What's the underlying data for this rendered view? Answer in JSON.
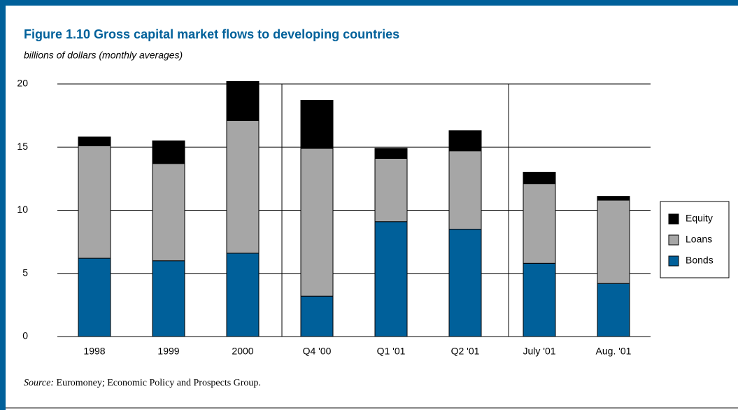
{
  "chart_data": {
    "type": "stacked_bar",
    "title": "Figure 1.10  Gross capital market flows to developing countries",
    "subtitle": "billions of dollars (monthly averages)",
    "categories": [
      "1998",
      "1999",
      "2000",
      "Q4 '00",
      "Q1 '01",
      "Q2 '01",
      "July '01",
      "Aug. '01"
    ],
    "series": [
      {
        "name": "Bonds",
        "color": "#00609a",
        "values": [
          6.2,
          6.0,
          6.6,
          3.2,
          9.1,
          8.5,
          5.8,
          4.2
        ]
      },
      {
        "name": "Loans",
        "color": "#a6a6a6",
        "values": [
          8.9,
          7.7,
          10.5,
          11.7,
          5.0,
          6.2,
          6.3,
          6.6
        ]
      },
      {
        "name": "Equity",
        "color": "#000000",
        "values": [
          0.7,
          1.8,
          3.1,
          3.8,
          0.8,
          1.6,
          0.9,
          0.3
        ]
      }
    ],
    "ylim": [
      0,
      20
    ],
    "yticks": [
      0,
      5,
      10,
      15,
      20
    ],
    "grid": true,
    "legend": "right",
    "source_label": "Source:",
    "source_text": "Euromoney; Economic Policy and Prospects Group."
  }
}
